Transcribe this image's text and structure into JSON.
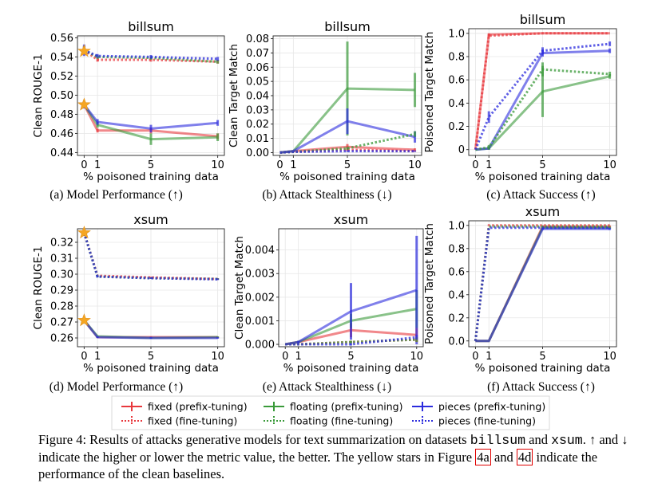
{
  "colors": {
    "fixed": "#e8383d",
    "floating": "#3a9a3a",
    "pieces": "#2b2bdd",
    "star": "#f5a623",
    "grid": "#e6e6e6",
    "ref_box": "#e00000"
  },
  "chart_data": [
    {
      "type": "line",
      "title": "billsum",
      "xlabel": "% poisoned training data",
      "ylabel": "Clean ROUGE-1",
      "x": [
        0,
        1,
        5,
        10
      ],
      "xticks": [
        "0",
        "1",
        "5",
        "10"
      ],
      "xlim": [
        -0.5,
        10.5
      ],
      "ylim": [
        0.437,
        0.562
      ],
      "yticks": [
        0.44,
        0.46,
        0.48,
        0.5,
        0.52,
        0.54,
        0.56
      ],
      "ytick_labels": [
        "0.44",
        "0.46",
        "0.48",
        "0.50",
        "0.52",
        "0.54",
        "0.56"
      ],
      "stars": [
        0.546,
        0.49
      ],
      "series": [
        {
          "key": "fixed",
          "style": "solid",
          "values": [
            0.49,
            0.463,
            0.463,
            0.457
          ],
          "errors": [
            0.003,
            0.002,
            0.003,
            0.003
          ]
        },
        {
          "key": "floating",
          "style": "solid",
          "values": [
            0.49,
            0.469,
            0.454,
            0.456
          ],
          "errors": [
            0.003,
            0.003,
            0.006,
            0.004
          ]
        },
        {
          "key": "pieces",
          "style": "solid",
          "values": [
            0.49,
            0.472,
            0.465,
            0.471
          ],
          "errors": [
            0.004,
            0.003,
            0.004,
            0.003
          ]
        },
        {
          "key": "fixed",
          "style": "dotted",
          "values": [
            0.547,
            0.537,
            0.537,
            0.535
          ],
          "errors": [
            0.004,
            0.002,
            0.002,
            0.002
          ]
        },
        {
          "key": "floating",
          "style": "dotted",
          "values": [
            0.547,
            0.54,
            0.539,
            0.535
          ],
          "errors": [
            0.004,
            0.002,
            0.002,
            0.002
          ]
        },
        {
          "key": "pieces",
          "style": "dotted",
          "values": [
            0.547,
            0.541,
            0.54,
            0.538
          ],
          "errors": [
            0.006,
            0.002,
            0.002,
            0.002
          ]
        }
      ]
    },
    {
      "type": "line",
      "title": "billsum",
      "xlabel": "% poisoned training data",
      "ylabel": "Clean Target Match",
      "x": [
        0,
        1,
        5,
        10
      ],
      "xticks": [
        "0",
        "1",
        "5",
        "10"
      ],
      "xlim": [
        -0.5,
        10.5
      ],
      "ylim": [
        -0.002,
        0.082
      ],
      "yticks": [
        0,
        0.01,
        0.02,
        0.03,
        0.04,
        0.05,
        0.06,
        0.07,
        0.08
      ],
      "ytick_labels": [
        "0.00",
        "0.01",
        "0.02",
        "0.03",
        "0.04",
        "0.05",
        "0.06",
        "0.07",
        "0.08"
      ],
      "series": [
        {
          "key": "fixed",
          "style": "solid",
          "values": [
            0,
            0.001,
            0.004,
            0.002
          ],
          "errors": [
            0,
            0.0005,
            0.002,
            0.001
          ]
        },
        {
          "key": "floating",
          "style": "solid",
          "values": [
            0,
            0.001,
            0.045,
            0.044
          ],
          "errors": [
            0,
            0.0005,
            0.033,
            0.012
          ]
        },
        {
          "key": "pieces",
          "style": "solid",
          "values": [
            0,
            0.001,
            0.022,
            0.011
          ],
          "errors": [
            0,
            0.0005,
            0.009,
            0.004
          ]
        },
        {
          "key": "fixed",
          "style": "dotted",
          "values": [
            0,
            0.0005,
            0.002,
            0.001
          ],
          "errors": [
            0,
            0,
            0.001,
            0.0005
          ]
        },
        {
          "key": "floating",
          "style": "dotted",
          "values": [
            0,
            0.0005,
            0.003,
            0.013
          ],
          "errors": [
            0,
            0,
            0.001,
            0.002
          ]
        },
        {
          "key": "pieces",
          "style": "dotted",
          "values": [
            0,
            0.0005,
            0.001,
            0.001
          ],
          "errors": [
            0,
            0,
            0.0005,
            0.0005
          ]
        }
      ]
    },
    {
      "type": "line",
      "title": "billsum",
      "xlabel": "% poisoned training data",
      "ylabel": "Poisoned Target Match",
      "x": [
        0,
        1,
        5,
        10
      ],
      "xticks": [
        "0",
        "1",
        "5",
        "10"
      ],
      "xlim": [
        -0.5,
        10.5
      ],
      "ylim": [
        -0.05,
        1.04
      ],
      "yticks": [
        0,
        0.2,
        0.4,
        0.6,
        0.8,
        1.0
      ],
      "ytick_labels": [
        "0",
        "0.2",
        "0.4",
        "0.6",
        "0.8",
        "1.0"
      ],
      "series": [
        {
          "key": "fixed",
          "style": "solid",
          "values": [
            0,
            0.99,
            1.0,
            1.0
          ],
          "errors": [
            0,
            0.01,
            0,
            0
          ]
        },
        {
          "key": "floating",
          "style": "solid",
          "values": [
            0,
            0.01,
            0.5,
            0.63
          ],
          "errors": [
            0,
            0.01,
            0.22,
            0.02
          ]
        },
        {
          "key": "pieces",
          "style": "solid",
          "values": [
            0,
            0.01,
            0.83,
            0.85
          ],
          "errors": [
            0,
            0.01,
            0.03,
            0.02
          ]
        },
        {
          "key": "fixed",
          "style": "dotted",
          "values": [
            0,
            0.98,
            1.0,
            1.0
          ],
          "errors": [
            0,
            0.01,
            0,
            0
          ]
        },
        {
          "key": "floating",
          "style": "dotted",
          "values": [
            0,
            0.02,
            0.69,
            0.65
          ],
          "errors": [
            0,
            0.02,
            0.06,
            0.02
          ]
        },
        {
          "key": "pieces",
          "style": "dotted",
          "values": [
            0,
            0.28,
            0.85,
            0.91
          ],
          "errors": [
            0,
            0.05,
            0.03,
            0.02
          ]
        }
      ]
    },
    {
      "type": "line",
      "title": "xsum",
      "xlabel": "% poisoned training data",
      "ylabel": "Clean ROUGE-1",
      "x": [
        0,
        1,
        5,
        10
      ],
      "xticks": [
        "0",
        "1",
        "5",
        "10"
      ],
      "xlim": [
        -0.5,
        10.5
      ],
      "ylim": [
        0.2545,
        0.3285
      ],
      "yticks": [
        0.26,
        0.27,
        0.28,
        0.29,
        0.3,
        0.31,
        0.32
      ],
      "ytick_labels": [
        "0.26",
        "0.27",
        "0.28",
        "0.29",
        "0.30",
        "0.31",
        "0.32"
      ],
      "stars": [
        0.326,
        0.271
      ],
      "series": [
        {
          "key": "fixed",
          "style": "solid",
          "values": [
            0.271,
            0.2605,
            0.2605,
            0.2605
          ],
          "errors": [
            0.001,
            0.0005,
            0.0005,
            0.0005
          ]
        },
        {
          "key": "floating",
          "style": "solid",
          "values": [
            0.271,
            0.261,
            0.26,
            0.2605
          ],
          "errors": [
            0.001,
            0.0005,
            0.0005,
            0.0005
          ]
        },
        {
          "key": "pieces",
          "style": "solid",
          "values": [
            0.271,
            0.2605,
            0.26,
            0.26
          ],
          "errors": [
            0.001,
            0.0005,
            0.0005,
            0.0005
          ]
        },
        {
          "key": "fixed",
          "style": "dotted",
          "values": [
            0.326,
            0.299,
            0.298,
            0.297
          ],
          "errors": [
            0.002,
            0.0005,
            0.0005,
            0.0005
          ]
        },
        {
          "key": "floating",
          "style": "dotted",
          "values": [
            0.326,
            0.2985,
            0.2975,
            0.297
          ],
          "errors": [
            0.002,
            0.0005,
            0.0005,
            0.0005
          ]
        },
        {
          "key": "pieces",
          "style": "dotted",
          "values": [
            0.326,
            0.2985,
            0.2975,
            0.2968
          ],
          "errors": [
            0.002,
            0.0005,
            0.0005,
            0.0005
          ]
        }
      ]
    },
    {
      "type": "line",
      "title": "xsum",
      "xlabel": "% poisoned training data",
      "ylabel": "Clean Target Match",
      "x": [
        0,
        1,
        5,
        10
      ],
      "xticks": [
        "0",
        "1",
        "5",
        "10"
      ],
      "xlim": [
        -0.5,
        10.5
      ],
      "ylim": [
        -0.0001,
        0.0049
      ],
      "yticks": [
        0,
        0.001,
        0.002,
        0.003,
        0.004
      ],
      "ytick_labels": [
        "0.000",
        "0.001",
        "0.002",
        "0.003",
        "0.004"
      ],
      "series": [
        {
          "key": "fixed",
          "style": "solid",
          "values": [
            0,
            0.0001,
            0.0006,
            0.0004
          ],
          "errors": [
            0,
            5e-05,
            0.0003,
            0.0003
          ]
        },
        {
          "key": "floating",
          "style": "solid",
          "values": [
            0,
            0.0001,
            0.001,
            0.0015
          ],
          "errors": [
            0,
            5e-05,
            0.0003,
            0.0008
          ]
        },
        {
          "key": "pieces",
          "style": "solid",
          "values": [
            0,
            0.0001,
            0.0014,
            0.0023
          ],
          "errors": [
            0,
            5e-05,
            0.0012,
            0.0023
          ]
        },
        {
          "key": "fixed",
          "style": "dotted",
          "values": [
            0,
            0,
            0.0001,
            0.0002
          ],
          "errors": [
            0,
            0,
            5e-05,
            0.0001
          ]
        },
        {
          "key": "floating",
          "style": "dotted",
          "values": [
            0,
            0,
            0.0001,
            0.0002
          ],
          "errors": [
            0,
            0,
            5e-05,
            0.0001
          ]
        },
        {
          "key": "pieces",
          "style": "dotted",
          "values": [
            0,
            0,
            0,
            0.0003
          ],
          "errors": [
            0,
            0,
            5e-05,
            0.0001
          ]
        }
      ]
    },
    {
      "type": "line",
      "title": "xsum",
      "xlabel": "% poisoned training data",
      "ylabel": "Poisoned Target Match",
      "x": [
        0,
        1,
        5,
        10
      ],
      "xticks": [
        "0",
        "1",
        "5",
        "10"
      ],
      "xlim": [
        -0.5,
        10.5
      ],
      "ylim": [
        -0.05,
        1.04
      ],
      "yticks": [
        0,
        0.2,
        0.4,
        0.6,
        0.8,
        1.0
      ],
      "ytick_labels": [
        "0.0",
        "0.2",
        "0.4",
        "0.6",
        "0.8",
        "1.0"
      ],
      "series": [
        {
          "key": "fixed",
          "style": "solid",
          "values": [
            0,
            0,
            0.99,
            0.99
          ],
          "errors": [
            0,
            0,
            0.01,
            0.01
          ]
        },
        {
          "key": "floating",
          "style": "solid",
          "values": [
            0,
            0,
            0.98,
            0.98
          ],
          "errors": [
            0,
            0,
            0.01,
            0.01
          ]
        },
        {
          "key": "pieces",
          "style": "solid",
          "values": [
            0,
            0,
            0.97,
            0.97
          ],
          "errors": [
            0,
            0,
            0.01,
            0.01
          ]
        },
        {
          "key": "fixed",
          "style": "dotted",
          "values": [
            0,
            1.0,
            1.0,
            1.0
          ],
          "errors": [
            0,
            0,
            0,
            0
          ]
        },
        {
          "key": "floating",
          "style": "dotted",
          "values": [
            0,
            0.99,
            0.99,
            0.99
          ],
          "errors": [
            0,
            0,
            0,
            0
          ]
        },
        {
          "key": "pieces",
          "style": "dotted",
          "values": [
            0,
            0.98,
            0.98,
            0.98
          ],
          "errors": [
            0,
            0,
            0,
            0
          ]
        }
      ]
    }
  ],
  "subcaptions": [
    "(a) Model Performance (↑)",
    "(b) Attack Stealthiness (↓)",
    "(c) Attack Success (↑)",
    "(d) Model Performance (↑)",
    "(e) Attack Stealthiness (↓)",
    "(f) Attack Success (↑)"
  ],
  "legend": [
    {
      "key": "fixed",
      "style": "solid",
      "label": "fixed (prefix-tuning)"
    },
    {
      "key": "floating",
      "style": "solid",
      "label": "floating (prefix-tuning)"
    },
    {
      "key": "pieces",
      "style": "solid",
      "label": "pieces (prefix-tuning)"
    },
    {
      "key": "fixed",
      "style": "dotted",
      "label": "fixed (fine-tuning)"
    },
    {
      "key": "floating",
      "style": "dotted",
      "label": "floating (fine-tuning)"
    },
    {
      "key": "pieces",
      "style": "dotted",
      "label": "pieces (fine-tuning)"
    }
  ],
  "caption": {
    "part1": "Figure 4: Results of attacks generative models for text summarization on datasets ",
    "dataset1": "billsum",
    "and_word": " and ",
    "dataset2": "xsum",
    "part2": ". ↑ and ↓ indicate the higher or lower the metric value, the better. The yellow stars in Figure ",
    "ref1": "4a",
    "mid": " and ",
    "ref2": "4d",
    "part3": " indicate the performance of the clean baselines."
  }
}
